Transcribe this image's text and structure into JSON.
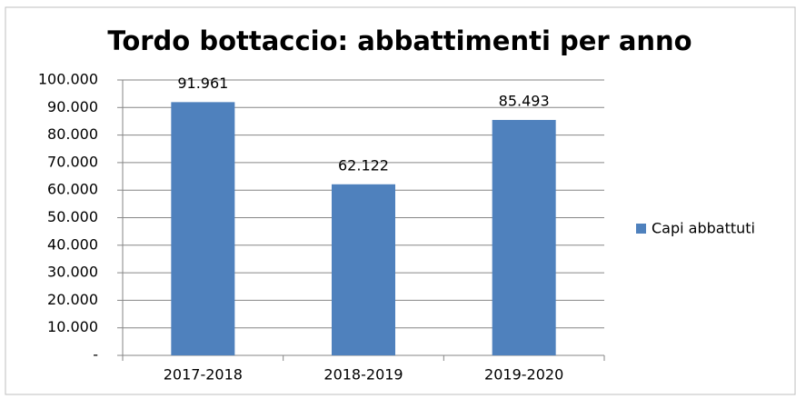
{
  "chart_data": {
    "type": "bar",
    "title": "Tordo bottaccio: abbattimenti per anno",
    "categories": [
      "2017-2018",
      "2018-2019",
      "2019-2020"
    ],
    "series": [
      {
        "name": "Capi abbattuti",
        "color": "#4f81bd",
        "values": [
          91961,
          62122,
          85493
        ],
        "value_labels": [
          "91.961",
          "62.122",
          "85.493"
        ]
      }
    ],
    "ylim": [
      0,
      100000
    ],
    "yticks": [
      {
        "value": 0,
        "label": "-"
      },
      {
        "value": 10000,
        "label": "10.000"
      },
      {
        "value": 20000,
        "label": "20.000"
      },
      {
        "value": 30000,
        "label": "30.000"
      },
      {
        "value": 40000,
        "label": "40.000"
      },
      {
        "value": 50000,
        "label": "50.000"
      },
      {
        "value": 60000,
        "label": "60.000"
      },
      {
        "value": 70000,
        "label": "70.000"
      },
      {
        "value": 80000,
        "label": "80.000"
      },
      {
        "value": 90000,
        "label": "90.000"
      },
      {
        "value": 100000,
        "label": "100.000"
      }
    ],
    "grid": true,
    "legend": "right"
  }
}
